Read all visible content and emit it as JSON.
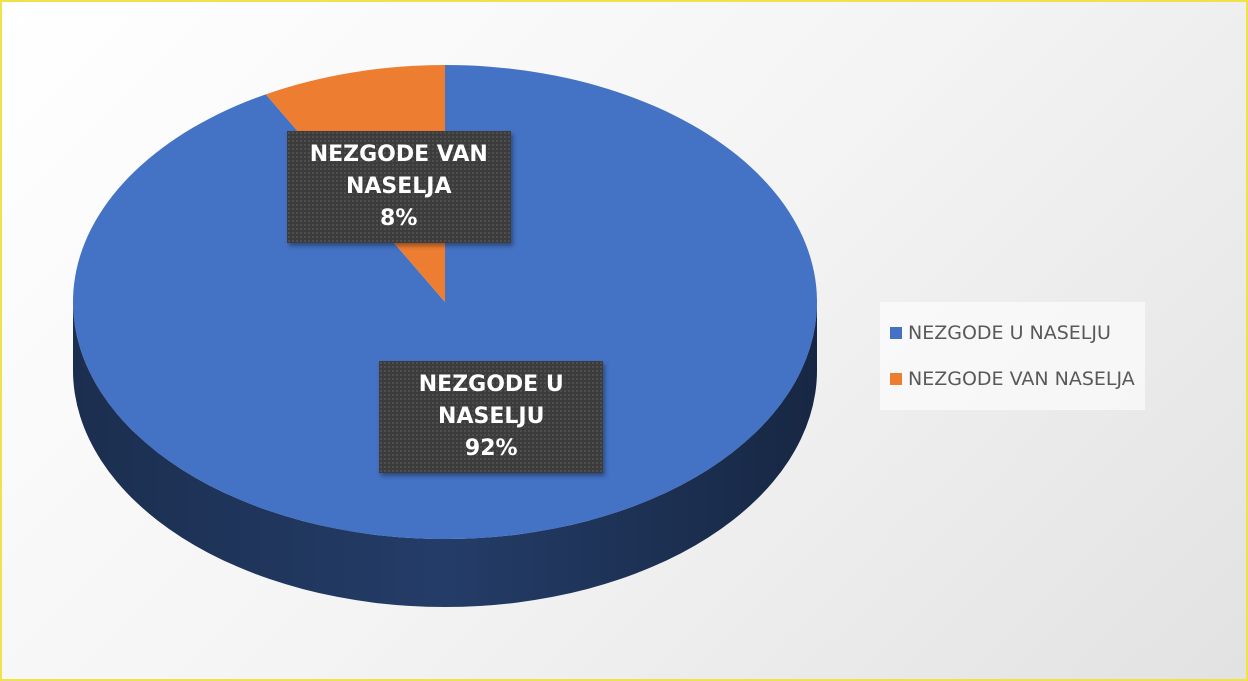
{
  "chart_data": {
    "type": "pie3d",
    "categories": [
      "NEZGODE U NASELJU",
      "NEZGODE VAN NASELJA"
    ],
    "values": [
      92,
      8
    ],
    "value_labels": [
      "92%",
      "8%"
    ],
    "colors": [
      "#4472c4",
      "#ed7d31"
    ],
    "legend": "right"
  }
}
